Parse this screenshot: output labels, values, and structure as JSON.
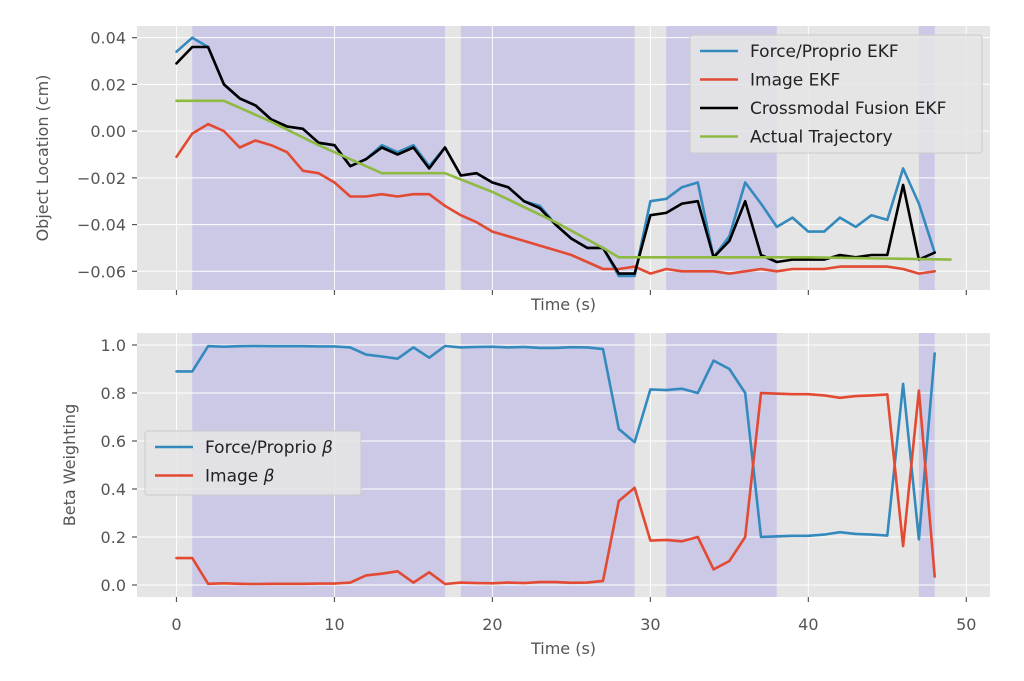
{
  "colors": {
    "force": "#348ABD",
    "image": "#E24A33",
    "fusion": "#000000",
    "actual": "#8EBA42",
    "plot_bg": "#E5E5E5",
    "shade": "#C7C4E6",
    "grid": "#FFFFFF"
  },
  "chart_data": [
    {
      "type": "line",
      "xlabel": "Time (s)",
      "ylabel": "Object Location (cm)",
      "xlim": [
        -2.5,
        51.5
      ],
      "ylim": [
        -0.068,
        0.045
      ],
      "xticks": [
        0,
        10,
        20,
        30,
        40,
        50
      ],
      "show_xtick_labels": false,
      "yticks": [
        0.04,
        0.02,
        0.0,
        -0.02,
        -0.04,
        -0.06
      ],
      "ytick_labels": [
        "0.04",
        "0.02",
        "0.00",
        "−0.02",
        "−0.04",
        "−0.06"
      ],
      "grid": true,
      "legend_position": "top-right",
      "shaded_regions": [
        [
          1,
          17
        ],
        [
          18,
          29
        ],
        [
          31,
          38
        ],
        [
          47,
          48
        ]
      ],
      "series": [
        {
          "name": "Force/Proprio EKF",
          "color_key": "force",
          "x": [
            0,
            1,
            2,
            3,
            4,
            5,
            6,
            7,
            8,
            9,
            10,
            11,
            12,
            13,
            14,
            15,
            16,
            17,
            18,
            19,
            20,
            21,
            22,
            23,
            24,
            25,
            26,
            27,
            28,
            29,
            30,
            31,
            32,
            33,
            34,
            35,
            36,
            37,
            38,
            39,
            40,
            41,
            42,
            43,
            44,
            45,
            46,
            47,
            48
          ],
          "y": [
            0.034,
            0.04,
            0.036,
            0.02,
            0.014,
            0.011,
            0.005,
            0.002,
            0.001,
            -0.005,
            -0.006,
            -0.015,
            -0.012,
            -0.006,
            -0.009,
            -0.006,
            -0.015,
            -0.007,
            -0.019,
            -0.018,
            -0.022,
            -0.024,
            -0.03,
            -0.032,
            -0.04,
            -0.046,
            -0.05,
            -0.05,
            -0.062,
            -0.062,
            -0.03,
            -0.029,
            -0.024,
            -0.022,
            -0.054,
            -0.045,
            -0.022,
            -0.031,
            -0.041,
            -0.037,
            -0.043,
            -0.043,
            -0.037,
            -0.041,
            -0.036,
            -0.038,
            -0.016,
            -0.031,
            -0.052
          ]
        },
        {
          "name": "Image EKF",
          "color_key": "image",
          "x": [
            0,
            1,
            2,
            3,
            4,
            5,
            6,
            7,
            8,
            9,
            10,
            11,
            12,
            13,
            14,
            15,
            16,
            17,
            18,
            19,
            20,
            21,
            22,
            23,
            24,
            25,
            26,
            27,
            28,
            29,
            30,
            31,
            32,
            33,
            34,
            35,
            36,
            37,
            38,
            39,
            40,
            41,
            42,
            43,
            44,
            45,
            46,
            47,
            48
          ],
          "y": [
            -0.011,
            -0.001,
            0.003,
            0.0,
            -0.007,
            -0.004,
            -0.006,
            -0.009,
            -0.017,
            -0.018,
            -0.022,
            -0.028,
            -0.028,
            -0.027,
            -0.028,
            -0.027,
            -0.027,
            -0.032,
            -0.036,
            -0.039,
            -0.043,
            -0.045,
            -0.047,
            -0.049,
            -0.051,
            -0.053,
            -0.056,
            -0.059,
            -0.059,
            -0.058,
            -0.061,
            -0.059,
            -0.06,
            -0.06,
            -0.06,
            -0.061,
            -0.06,
            -0.059,
            -0.06,
            -0.059,
            -0.059,
            -0.059,
            -0.058,
            -0.058,
            -0.058,
            -0.058,
            -0.059,
            -0.061,
            -0.06
          ]
        },
        {
          "name": "Crossmodal Fusion EKF",
          "color_key": "fusion",
          "x": [
            0,
            1,
            2,
            3,
            4,
            5,
            6,
            7,
            8,
            9,
            10,
            11,
            12,
            13,
            14,
            15,
            16,
            17,
            18,
            19,
            20,
            21,
            22,
            23,
            24,
            25,
            26,
            27,
            28,
            29,
            30,
            31,
            32,
            33,
            34,
            35,
            36,
            37,
            38,
            39,
            40,
            41,
            42,
            43,
            44,
            45,
            46,
            47,
            48
          ],
          "y": [
            0.029,
            0.036,
            0.036,
            0.02,
            0.014,
            0.011,
            0.005,
            0.002,
            0.001,
            -0.005,
            -0.006,
            -0.015,
            -0.012,
            -0.007,
            -0.01,
            -0.007,
            -0.016,
            -0.007,
            -0.019,
            -0.018,
            -0.022,
            -0.024,
            -0.03,
            -0.033,
            -0.04,
            -0.046,
            -0.05,
            -0.05,
            -0.061,
            -0.061,
            -0.036,
            -0.035,
            -0.031,
            -0.03,
            -0.054,
            -0.047,
            -0.03,
            -0.053,
            -0.056,
            -0.055,
            -0.055,
            -0.055,
            -0.053,
            -0.054,
            -0.053,
            -0.053,
            -0.023,
            -0.055,
            -0.052
          ]
        },
        {
          "name": "Actual Trajectory",
          "color_key": "actual",
          "x": [
            0,
            3,
            6,
            9,
            13,
            17,
            20,
            24,
            27,
            28,
            40,
            49
          ],
          "y": [
            0.013,
            0.013,
            0.004,
            -0.006,
            -0.018,
            -0.018,
            -0.026,
            -0.039,
            -0.05,
            -0.054,
            -0.054,
            -0.055
          ]
        }
      ]
    },
    {
      "type": "line",
      "xlabel": "Time (s)",
      "ylabel": "Beta Weighting",
      "xlim": [
        -2.5,
        51.5
      ],
      "ylim": [
        -0.05,
        1.05
      ],
      "xticks": [
        0,
        10,
        20,
        30,
        40,
        50
      ],
      "xtick_labels": [
        "0",
        "10",
        "20",
        "30",
        "40",
        "50"
      ],
      "yticks": [
        0.0,
        0.2,
        0.4,
        0.6,
        0.8,
        1.0
      ],
      "ytick_labels": [
        "0.0",
        "0.2",
        "0.4",
        "0.6",
        "0.8",
        "1.0"
      ],
      "grid": true,
      "legend_position": "center-left",
      "shaded_regions": [
        [
          1,
          17
        ],
        [
          18,
          29
        ],
        [
          31,
          38
        ],
        [
          47,
          48
        ]
      ],
      "series": [
        {
          "name": "Force/Proprio β",
          "legend_plain": "Force/Proprio ",
          "legend_symbol": "β",
          "color_key": "force",
          "x": [
            0,
            1,
            2,
            3,
            4,
            5,
            6,
            7,
            8,
            9,
            10,
            11,
            12,
            13,
            14,
            15,
            16,
            17,
            18,
            19,
            20,
            21,
            22,
            23,
            24,
            25,
            26,
            27,
            28,
            29,
            30,
            31,
            32,
            33,
            34,
            35,
            36,
            37,
            38,
            39,
            40,
            41,
            42,
            43,
            44,
            45,
            46,
            47,
            48
          ],
          "y": [
            0.89,
            0.89,
            0.995,
            0.993,
            0.995,
            0.996,
            0.995,
            0.995,
            0.995,
            0.994,
            0.994,
            0.99,
            0.96,
            0.952,
            0.943,
            0.99,
            0.947,
            0.996,
            0.99,
            0.992,
            0.993,
            0.99,
            0.992,
            0.988,
            0.988,
            0.991,
            0.99,
            0.983,
            0.65,
            0.595,
            0.815,
            0.812,
            0.818,
            0.8,
            0.935,
            0.9,
            0.8,
            0.2,
            0.203,
            0.205,
            0.205,
            0.21,
            0.22,
            0.213,
            0.21,
            0.206,
            0.838,
            0.19,
            0.965
          ]
        },
        {
          "name": "Image β",
          "legend_plain": "Image ",
          "legend_symbol": "β",
          "color_key": "image",
          "x": [
            0,
            1,
            2,
            3,
            4,
            5,
            6,
            7,
            8,
            9,
            10,
            11,
            12,
            13,
            14,
            15,
            16,
            17,
            18,
            19,
            20,
            21,
            22,
            23,
            24,
            25,
            26,
            27,
            28,
            29,
            30,
            31,
            32,
            33,
            34,
            35,
            36,
            37,
            38,
            39,
            40,
            41,
            42,
            43,
            44,
            45,
            46,
            47,
            48
          ],
          "y": [
            0.112,
            0.112,
            0.005,
            0.007,
            0.005,
            0.004,
            0.005,
            0.005,
            0.005,
            0.006,
            0.006,
            0.01,
            0.04,
            0.047,
            0.057,
            0.01,
            0.053,
            0.004,
            0.01,
            0.008,
            0.007,
            0.01,
            0.008,
            0.012,
            0.012,
            0.009,
            0.01,
            0.017,
            0.35,
            0.405,
            0.185,
            0.188,
            0.182,
            0.2,
            0.065,
            0.1,
            0.2,
            0.8,
            0.797,
            0.795,
            0.795,
            0.79,
            0.78,
            0.787,
            0.79,
            0.794,
            0.162,
            0.81,
            0.035
          ]
        }
      ]
    }
  ]
}
